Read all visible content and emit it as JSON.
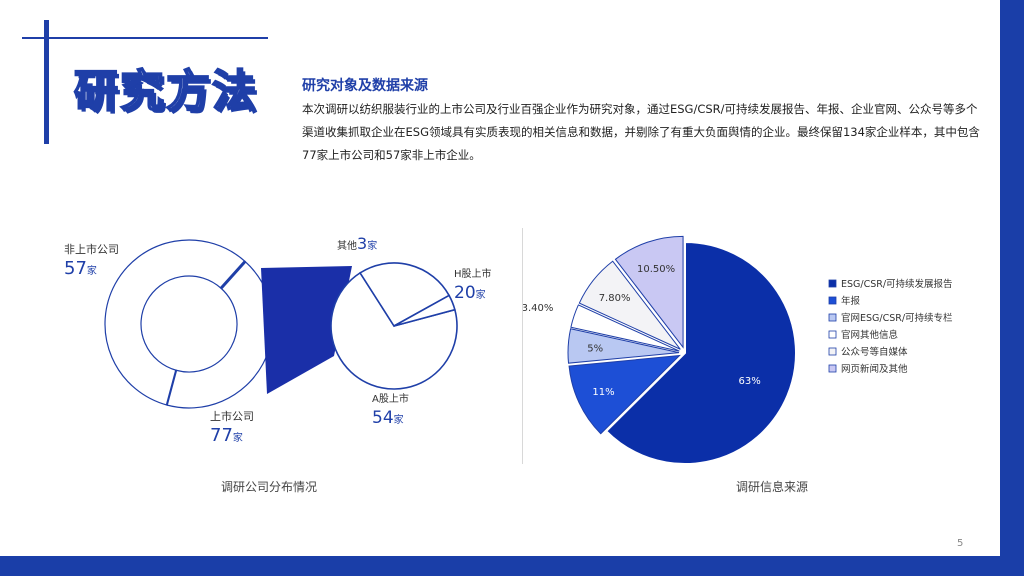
{
  "page_title": "研究方法",
  "section_heading": "研究对象及数据来源",
  "section_body": "本次调研以纺织服装行业的上市公司及行业百强企业作为研究对象，通过ESG/CSR/可持续发展报告、年报、企业官网、公众号等多个渠道收集抓取企业在ESG领域具有实质表现的相关信息和数据，并剔除了有重大负面舆情的企业。最终保留134家企业样本，其中包含77家上市公司和57家非上市企业。",
  "page_number": "5",
  "colors": {
    "primary": "#1a3ea8",
    "dark_blue": "#0b2fa8",
    "mid_blue": "#1d4fd6",
    "light_blue": "#b9c8f2",
    "lavender": "#c9c8f3",
    "white": "#ffffff"
  },
  "chart_data": [
    {
      "type": "pie",
      "caption": "调研公司分布情况",
      "outer_ring": {
        "categories": [
          "上市公司",
          "非上市公司"
        ],
        "values": [
          77,
          57
        ],
        "unit": "家"
      },
      "detail_pie": {
        "parent_category": "上市公司",
        "categories": [
          "A股上市",
          "H股上市",
          "其他"
        ],
        "values": [
          54,
          20,
          3
        ],
        "unit": "家"
      },
      "labels": [
        {
          "name": "非上市公司",
          "value": "57",
          "unit": "家"
        },
        {
          "name": "上市公司",
          "value": "77",
          "unit": "家"
        },
        {
          "name": "其他",
          "value": "3",
          "unit": "家"
        },
        {
          "name": "H股上市",
          "value": "20",
          "unit": "家"
        },
        {
          "name": "A股上市",
          "value": "54",
          "unit": "家"
        }
      ]
    },
    {
      "type": "pie",
      "caption": "调研信息来源",
      "categories": [
        "ESG/CSR/可持续发展报告",
        "年报",
        "官网ESG/CSR/可持续专栏",
        "官网其他信息",
        "公众号等自媒体",
        "网页新闻及其他"
      ],
      "values": [
        63,
        11,
        5,
        3.4,
        7.8,
        10.5
      ],
      "data_labels": [
        "63%",
        "11%",
        "5%",
        "3.40%",
        "7.80%",
        "10.50%"
      ],
      "legend_position": "right",
      "legend": [
        {
          "label": "ESG/CSR/可持续发展报告",
          "color": "#0b2fa8"
        },
        {
          "label": "年报",
          "color": "#1d4fd6"
        },
        {
          "label": "官网ESG/CSR/可持续专栏",
          "color": "#b9c8f2"
        },
        {
          "label": "官网其他信息",
          "color": "#ffffff"
        },
        {
          "label": "公众号等自媒体",
          "color": "#f3f3f6"
        },
        {
          "label": "网页新闻及其他",
          "color": "#c9c8f3"
        }
      ]
    }
  ]
}
